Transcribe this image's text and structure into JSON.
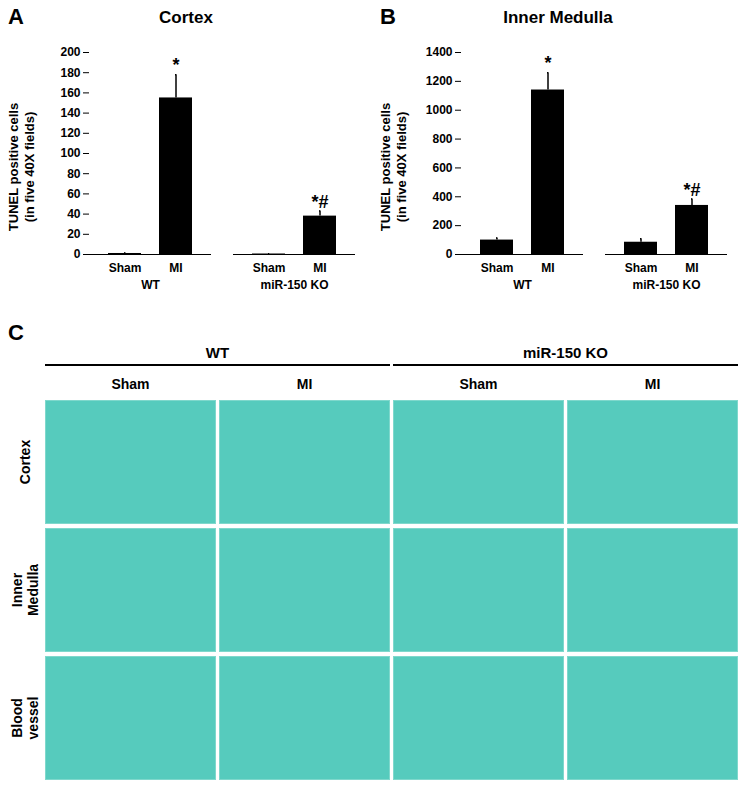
{
  "chart_data": [
    {
      "type": "bar",
      "annotations_panel": "A",
      "title": "Cortex",
      "y_label": "TUNEL positive cells\n(in five 40X fields)",
      "categories": [
        "Sham",
        "MI",
        "Sham",
        "MI"
      ],
      "group": [
        "WT",
        "WT",
        "miR-150 KO",
        "miR-150 KO"
      ],
      "values": [
        1,
        155,
        0.5,
        38
      ],
      "error": [
        0.5,
        23,
        0.3,
        5
      ],
      "annotations": [
        null,
        "*",
        null,
        "*#"
      ],
      "color": "#000000",
      "ylim": [
        0,
        200
      ],
      "yticks": [
        0,
        20,
        40,
        60,
        80,
        100,
        120,
        140,
        160,
        180,
        200
      ]
    },
    {
      "type": "bar",
      "annotations_panel": "B",
      "title": "Inner Medulla",
      "y_label": "TUNEL positive cells\n(in five 40X fields)",
      "categories": [
        "Sham",
        "MI",
        "Sham",
        "MI"
      ],
      "group": [
        "WT",
        "WT",
        "miR-150 KO",
        "miR-150 KO"
      ],
      "values": [
        100,
        1140,
        85,
        340
      ],
      "error": [
        15,
        120,
        25,
        45
      ],
      "annotations": [
        null,
        "*",
        null,
        "*#"
      ],
      "color": "#000000",
      "ylim": [
        0,
        1400
      ],
      "yticks": [
        0,
        200,
        400,
        600,
        800,
        1000,
        1200,
        1400
      ]
    }
  ],
  "panel_c": {
    "label": "C",
    "groups": [
      "WT",
      "miR-150 KO"
    ],
    "columns": [
      "Sham",
      "MI",
      "Sham",
      "MI"
    ],
    "rows": [
      "Cortex",
      "Inner\nMedulla",
      "Blood\nvessel"
    ]
  }
}
